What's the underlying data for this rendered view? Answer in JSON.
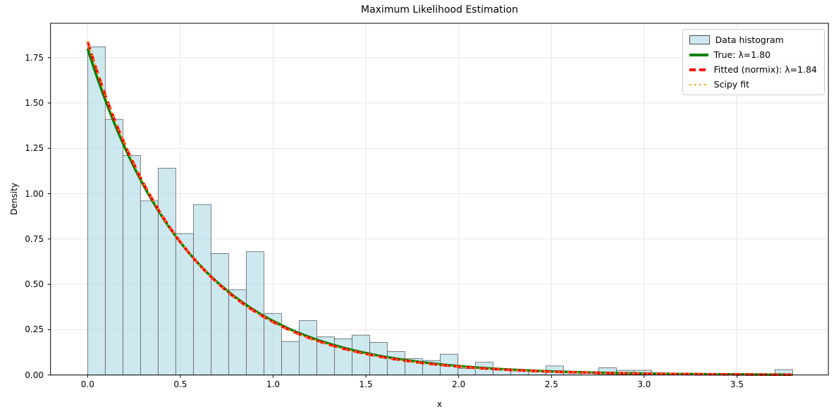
{
  "figure": {
    "title": "Maximum Likelihood Estimation",
    "xlabel": "x",
    "ylabel": "Density"
  },
  "chart_data": {
    "type": "bar",
    "subtype": "histogram-with-fitted-curves",
    "title": "Maximum Likelihood Estimation",
    "xlabel": "x",
    "ylabel": "Density",
    "xlim": [
      -0.2,
      4.0
    ],
    "ylim": [
      0,
      1.94
    ],
    "grid": true,
    "grid_color": "#e6e6e6",
    "x_tick_labels": [
      "0.0",
      "0.5",
      "1.0",
      "1.5",
      "2.0",
      "2.5",
      "3.0",
      "3.5"
    ],
    "x_tick_values": [
      0.0,
      0.5,
      1.0,
      1.5,
      2.0,
      2.5,
      3.0,
      3.5
    ],
    "y_tick_labels": [
      "0.00",
      "0.25",
      "0.50",
      "0.75",
      "1.00",
      "1.25",
      "1.50",
      "1.75"
    ],
    "y_tick_values": [
      0.0,
      0.25,
      0.5,
      0.75,
      1.0,
      1.25,
      1.5,
      1.75
    ],
    "histogram": {
      "label": "Data histogram",
      "bin_start": 0.0,
      "bin_width": 0.095,
      "fill_color": "rgba(173,216,230,0.6)",
      "edge_color": "#4d4d4d",
      "densities": [
        1.81,
        1.41,
        1.21,
        0.96,
        1.14,
        0.78,
        0.94,
        0.67,
        0.47,
        0.68,
        0.34,
        0.185,
        0.3,
        0.21,
        0.2,
        0.22,
        0.18,
        0.13,
        0.09,
        0.08,
        0.115,
        0.035,
        0.07,
        0.03,
        0.025,
        0.02,
        0.05,
        0.02,
        0.0,
        0.04,
        0.026,
        0.026,
        0.0,
        0.0,
        0.0,
        0.0,
        0.0,
        0.0,
        0.0,
        0.03
      ]
    },
    "curves": [
      {
        "label": "True: λ=1.80",
        "lambda": 1.8,
        "color": "#008000",
        "style": "solid",
        "linewidth": 3.5
      },
      {
        "label": "Fitted (normix): λ=1.84",
        "lambda": 1.84,
        "color": "#ff0000",
        "style": "dashed",
        "linewidth": 3.5
      },
      {
        "label": "Scipy fit",
        "lambda": 1.84,
        "color": "#ffa500",
        "style": "dotted",
        "linewidth": 2.2
      }
    ],
    "legend_position": "upper right"
  }
}
